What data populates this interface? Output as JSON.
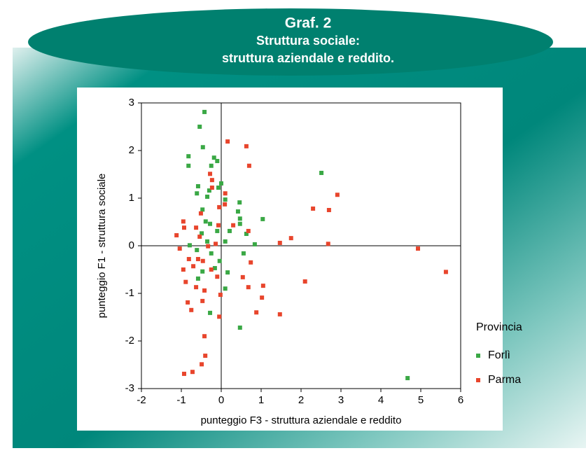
{
  "chart_data": {
    "type": "scatter",
    "title": "Graf. 2",
    "subtitle": [
      "Struttura sociale:",
      "struttura aziendale e reddito."
    ],
    "xlabel": "punteggio F3 - struttura aziendale e reddito",
    "ylabel": "punteggio F1 - struttura sociale",
    "legend_title": "Provincia",
    "legend": "right",
    "xlim": [
      -2,
      6
    ],
    "xticks": [
      -2,
      -1,
      0,
      1,
      2,
      3,
      4,
      5,
      6
    ],
    "ylim": [
      -3,
      3
    ],
    "yticks": [
      -3,
      -2,
      -1,
      0,
      1,
      2,
      3
    ],
    "series": [
      {
        "name": "Forlì",
        "color": "#3aa845",
        "x": [
          -0.42,
          -0.54,
          -0.46,
          -0.82,
          -0.82,
          -0.18,
          -0.1,
          -0.25,
          0,
          -0.58,
          -0.61,
          -0.3,
          -0.07,
          -0.35,
          0.1,
          0.46,
          1.04,
          2.51,
          -0.47,
          -0.39,
          -0.28,
          -0.49,
          -0.35,
          -0.1,
          0.42,
          0.47,
          0.21,
          0.1,
          0.84,
          0.63,
          0.47,
          -0.25,
          -0.04,
          0.56,
          0.16,
          0.1,
          -0.47,
          -0.58,
          -0.61,
          -0.28,
          0.47,
          4.67,
          -0.79,
          -0.16
        ],
        "values": [
          2.81,
          2.5,
          2.07,
          1.88,
          1.68,
          1.85,
          1.78,
          1.68,
          1.31,
          1.25,
          1.1,
          1.16,
          1.22,
          1.03,
          0.97,
          0.91,
          0.56,
          1.53,
          0.76,
          0.51,
          0.46,
          0.26,
          0.09,
          0.31,
          0.72,
          0.57,
          0.31,
          0.09,
          0.03,
          0.25,
          0.46,
          -0.16,
          -0.32,
          -0.16,
          -0.56,
          -0.9,
          -0.54,
          -0.69,
          -0.09,
          -1.41,
          -1.72,
          -2.78,
          0.01,
          -0.47
        ]
      },
      {
        "name": "Parma",
        "color": "#e8452c",
        "x": [
          0.16,
          0.63,
          0.7,
          0.1,
          0.09,
          2.91,
          2.7,
          2.3,
          2.68,
          1.75,
          1.47,
          4.93,
          5.63,
          2.1,
          1.05,
          1.02,
          0.68,
          0.88,
          1.47,
          -0.02,
          -0.05,
          -0.42,
          -0.4,
          -0.49,
          -0.72,
          -0.93,
          -0.84,
          -0.75,
          -0.47,
          -0.42,
          -0.63,
          -0.89,
          -0.95,
          -0.81,
          -1.04,
          -1.12,
          -0.93,
          -0.95,
          -0.63,
          -0.51,
          -0.54,
          -0.33,
          -0.46,
          -0.25,
          -0.1,
          0.3,
          0.68,
          -0.07,
          -0.14,
          -0.23,
          -0.28,
          -0.23,
          -0.05,
          0.74,
          0.54,
          -0.58,
          -0.7
        ],
        "values": [
          2.19,
          2.09,
          1.68,
          1.1,
          0.87,
          1.07,
          0.75,
          0.78,
          0.04,
          0.16,
          0.06,
          -0.06,
          -0.55,
          -0.75,
          -0.84,
          -1.09,
          -0.87,
          -1.4,
          -1.44,
          -1.03,
          -1.49,
          -1.9,
          -2.31,
          -2.49,
          -2.65,
          -2.69,
          -1.19,
          -1.35,
          -1.16,
          -0.94,
          -0.87,
          -0.76,
          -0.5,
          -0.28,
          -0.06,
          0.22,
          0.38,
          0.51,
          0.38,
          0.68,
          0.19,
          -0.01,
          -0.32,
          -0.5,
          -0.65,
          0.43,
          0.31,
          0.43,
          0.04,
          1.22,
          1.51,
          1.38,
          0.81,
          -0.35,
          -0.66,
          -0.28,
          -0.43
        ]
      }
    ]
  }
}
